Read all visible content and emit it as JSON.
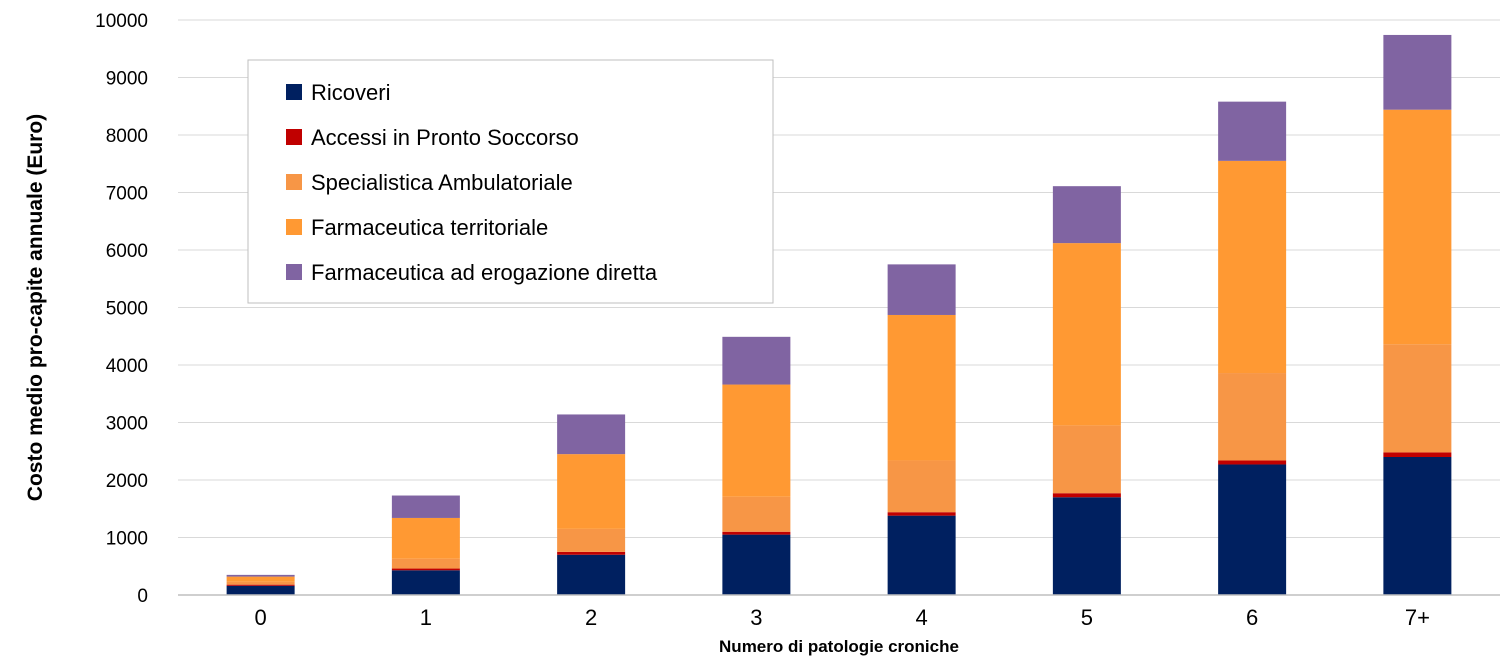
{
  "chart_data": {
    "type": "bar",
    "stacked": true,
    "title": "",
    "xlabel": "Numero di patologie croniche",
    "ylabel": "Costo medio pro-capite annuale (Euro)",
    "ylim": [
      0,
      10000
    ],
    "yticks": [
      0,
      1000,
      2000,
      3000,
      4000,
      5000,
      6000,
      7000,
      8000,
      9000,
      10000
    ],
    "grid": true,
    "legend_position": "top-left",
    "categories": [
      "0",
      "1",
      "2",
      "3",
      "4",
      "5",
      "6",
      "7+"
    ],
    "series": [
      {
        "name": "Ricoveri",
        "color": "#002060",
        "values": [
          160,
          430,
          700,
          1050,
          1380,
          1700,
          2270,
          2400
        ]
      },
      {
        "name": "Accessi in Pronto Soccorso",
        "color": "#C00000",
        "values": [
          20,
          30,
          50,
          50,
          60,
          70,
          70,
          80
        ]
      },
      {
        "name": "Specialistica Ambulatoriale",
        "color": "#F79646",
        "values": [
          50,
          170,
          400,
          610,
          900,
          1180,
          1520,
          1880
        ]
      },
      {
        "name": "Farmaceutica territoriale",
        "color": "#FF9933",
        "values": [
          90,
          710,
          1300,
          1950,
          2530,
          3170,
          3690,
          4080
        ]
      },
      {
        "name": "Farmaceutica ad erogazione diretta",
        "color": "#8064A2",
        "values": [
          30,
          390,
          690,
          830,
          880,
          990,
          1030,
          1300
        ]
      }
    ]
  }
}
